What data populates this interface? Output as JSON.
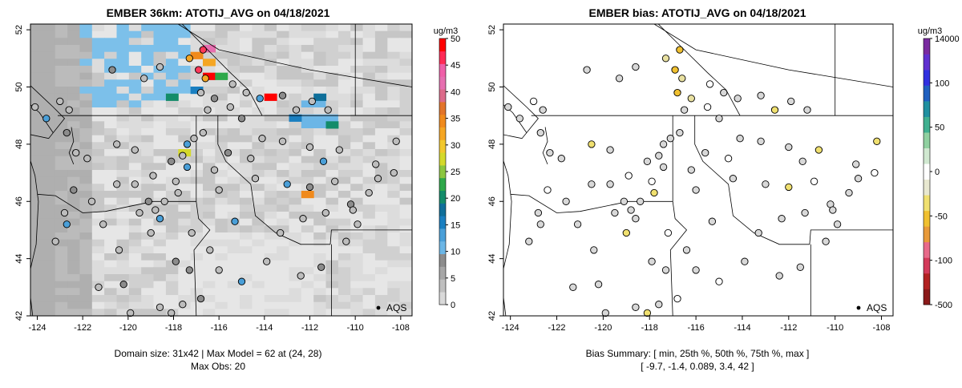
{
  "chart_data": [
    {
      "type": "heatmap",
      "title": "EMBER 36km: ATOTIJ_AVG on 04/18/2021",
      "xlim": [
        -124.3,
        -107.5
      ],
      "ylim": [
        42.0,
        52.2
      ],
      "x_ticks": [
        "-124",
        "-122",
        "-120",
        "-118",
        "-116",
        "-114",
        "-112",
        "-110",
        "-108"
      ],
      "y_ticks": [
        "42",
        "44",
        "46",
        "48",
        "50",
        "52"
      ],
      "colorbar": {
        "unit": "ug/m3",
        "tick_labels": [
          "0",
          "5",
          "10",
          "15",
          "20",
          "25",
          "30",
          "35",
          "40",
          "45",
          "50"
        ],
        "colors": [
          "#d9d9d9",
          "#bfbfbf",
          "#a6a6a6",
          "#8c8c8c",
          "#6cb6e6",
          "#4a9fd8",
          "#1a7fc0",
          "#0f6f9a",
          "#138c6a",
          "#2ea84a",
          "#8cc63f",
          "#d4d92b",
          "#f2c82e",
          "#f5a623",
          "#f08a1c",
          "#e2742a",
          "#dc6b8a",
          "#e66fb0",
          "#ef5fa8",
          "#ff2a55",
          "#ff0000"
        ]
      },
      "label_points": "AQS",
      "footer_lines": [
        "Domain size: 31x42 | Max Model = 62 at (24, 28)",
        "Max Obs: 20"
      ]
    },
    {
      "type": "scatter",
      "title": "EMBER bias: ATOTIJ_AVG on 04/18/2021",
      "xlim": [
        -124.3,
        -107.5
      ],
      "ylim": [
        42.0,
        52.2
      ],
      "x_ticks": [
        "-124",
        "-122",
        "-120",
        "-118",
        "-116",
        "-114",
        "-112",
        "-110",
        "-108"
      ],
      "y_ticks": [
        "42",
        "44",
        "46",
        "48",
        "50",
        "52"
      ],
      "colorbar": {
        "unit": "ug/m3",
        "tick_labels": [
          "14000",
          "100",
          "50",
          "0",
          "-50",
          "-100",
          "-500"
        ],
        "colors": [
          "#8b1a1a",
          "#b22222",
          "#d33a5a",
          "#e86a8a",
          "#e89a3a",
          "#f0c030",
          "#f0e070",
          "#e8e8d0",
          "#ffffff",
          "#d0e8d0",
          "#90d0a0",
          "#40b090",
          "#2090a0",
          "#2060c0",
          "#3030e0",
          "#6030d0",
          "#7a2aa0"
        ]
      },
      "label_points": "AQS",
      "footer_lines": [
        "Bias Summary: [ min, 25th %, 50th %, 75th %, max ]",
        "[ -9.7,   -1.4,   0.089,   3.4,   42 ]"
      ]
    }
  ]
}
